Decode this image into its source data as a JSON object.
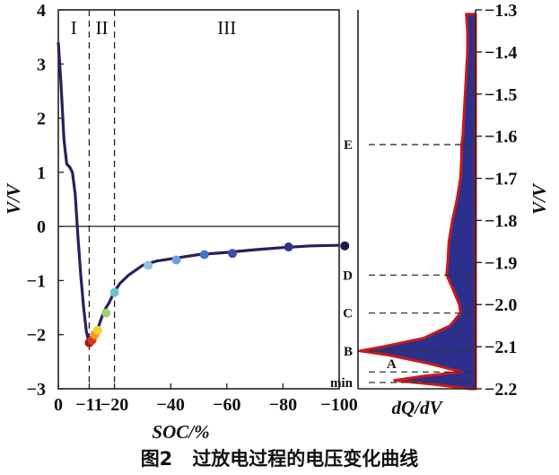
{
  "caption": {
    "number": "图2",
    "text": "过放电过程的电压变化曲线"
  },
  "chart_data": [
    {
      "type": "line",
      "xlabel": "SOC/%",
      "ylabel": "V/V",
      "xlim": [
        0,
        -100
      ],
      "ylim": [
        -3,
        4
      ],
      "x_ticks": [
        {
          "value": 0,
          "label": "0"
        },
        {
          "value": -11,
          "label": "−11"
        },
        {
          "value": -20,
          "label": "−20"
        },
        {
          "value": -40,
          "label": "−40"
        },
        {
          "value": -60,
          "label": "−60"
        },
        {
          "value": -80,
          "label": "−80"
        },
        {
          "value": -100,
          "label": "−100"
        }
      ],
      "y_ticks": [
        {
          "value": 4,
          "label": "4"
        },
        {
          "value": 3,
          "label": "3"
        },
        {
          "value": 2,
          "label": "2"
        },
        {
          "value": 1,
          "label": "1"
        },
        {
          "value": 0,
          "label": "0"
        },
        {
          "value": -1,
          "label": "−1"
        },
        {
          "value": -2,
          "label": "−2"
        },
        {
          "value": -3,
          "label": "−3"
        }
      ],
      "regions": [
        {
          "label": "I",
          "x": -5.5
        },
        {
          "label": "II",
          "x": -15.5
        },
        {
          "label": "III",
          "x": -60
        }
      ],
      "boundaries": [
        -11,
        -20
      ],
      "zero_line": 0,
      "series": [
        {
          "color": "#2a1f5c",
          "points": [
            [
              0,
              3.4
            ],
            [
              -1,
              2.6
            ],
            [
              -2,
              1.6
            ],
            [
              -3,
              1.15
            ],
            [
              -4,
              1.1
            ],
            [
              -5,
              1.0
            ],
            [
              -6,
              0.6
            ],
            [
              -7,
              -0.2
            ],
            [
              -8,
              -0.9
            ],
            [
              -9,
              -1.5
            ],
            [
              -10,
              -1.95
            ],
            [
              -11,
              -2.15
            ],
            [
              -12,
              -2.1
            ],
            [
              -13,
              -2.0
            ],
            [
              -14,
              -1.9
            ],
            [
              -15,
              -1.75
            ],
            [
              -16,
              -1.6
            ],
            [
              -17,
              -1.5
            ],
            [
              -18,
              -1.42
            ],
            [
              -20,
              -1.2
            ],
            [
              -22,
              -1.05
            ],
            [
              -25,
              -0.9
            ],
            [
              -30,
              -0.72
            ],
            [
              -35,
              -0.64
            ],
            [
              -40,
              -0.6
            ],
            [
              -50,
              -0.52
            ],
            [
              -60,
              -0.48
            ],
            [
              -70,
              -0.43
            ],
            [
              -80,
              -0.39
            ],
            [
              -90,
              -0.36
            ],
            [
              -100,
              -0.35
            ]
          ]
        }
      ],
      "markers": [
        {
          "x": -11,
          "y": -2.15,
          "color": "#b01818"
        },
        {
          "x": -12,
          "y": -2.1,
          "color": "#d83a1e"
        },
        {
          "x": -13,
          "y": -2.0,
          "color": "#f39a1c"
        },
        {
          "x": -14,
          "y": -1.92,
          "color": "#f4d32a"
        },
        {
          "x": -17,
          "y": -1.6,
          "color": "#9bd26b"
        },
        {
          "x": -20,
          "y": -1.22,
          "color": "#6fc3c8"
        },
        {
          "x": -32,
          "y": -0.72,
          "color": "#8ec3ea"
        },
        {
          "x": -42,
          "y": -0.62,
          "color": "#6d9fdc"
        },
        {
          "x": -52,
          "y": -0.52,
          "color": "#4a6fc4"
        },
        {
          "x": -62,
          "y": -0.5,
          "color": "#3b4ea6"
        },
        {
          "x": -82,
          "y": -0.38,
          "color": "#2f3488"
        },
        {
          "x": -102,
          "y": -0.36,
          "color": "#20174a"
        }
      ]
    },
    {
      "type": "area",
      "xlabel": "dQ/dV",
      "ylabel": "V/V",
      "ylim": [
        -1.3,
        -2.2
      ],
      "y_ticks": [
        {
          "value": -1.3,
          "label": "−1.3"
        },
        {
          "value": -1.4,
          "label": "−1.4"
        },
        {
          "value": -1.5,
          "label": "−1.5"
        },
        {
          "value": -1.6,
          "label": "−1.6"
        },
        {
          "value": -1.7,
          "label": "−1.7"
        },
        {
          "value": -1.8,
          "label": "−1.8"
        },
        {
          "value": -1.9,
          "label": "−1.9"
        },
        {
          "value": -2.0,
          "label": "−2.0"
        },
        {
          "value": -2.1,
          "label": "−2.1"
        },
        {
          "value": -2.2,
          "label": "−2.2"
        }
      ],
      "peaks": [
        {
          "label": "E",
          "v": -1.62
        },
        {
          "label": "D",
          "v": -1.93
        },
        {
          "label": "C",
          "v": -2.02
        },
        {
          "label": "B",
          "v": -2.11
        },
        {
          "label": "A",
          "v": -2.16
        },
        {
          "label": "min",
          "v": -2.185
        }
      ],
      "fill_color": "#2c2f8c",
      "edge_color": "#c81a1a",
      "profile": [
        [
          -1.31,
          0.08
        ],
        [
          -1.35,
          0.07
        ],
        [
          -1.4,
          0.07
        ],
        [
          -1.45,
          0.08
        ],
        [
          -1.5,
          0.09
        ],
        [
          -1.55,
          0.1
        ],
        [
          -1.6,
          0.11
        ],
        [
          -1.62,
          0.12
        ],
        [
          -1.65,
          0.12
        ],
        [
          -1.7,
          0.13
        ],
        [
          -1.75,
          0.16
        ],
        [
          -1.8,
          0.2
        ],
        [
          -1.85,
          0.23
        ],
        [
          -1.9,
          0.24
        ],
        [
          -1.93,
          0.25
        ],
        [
          -1.96,
          0.2
        ],
        [
          -2.0,
          0.14
        ],
        [
          -2.02,
          0.13
        ],
        [
          -2.05,
          0.22
        ],
        [
          -2.08,
          0.45
        ],
        [
          -2.1,
          0.8
        ],
        [
          -2.11,
          1.0
        ],
        [
          -2.12,
          0.75
        ],
        [
          -2.14,
          0.4
        ],
        [
          -2.16,
          0.12
        ],
        [
          -2.17,
          0.45
        ],
        [
          -2.18,
          0.7
        ],
        [
          -2.19,
          0.35
        ],
        [
          -2.2,
          0.05
        ]
      ]
    }
  ]
}
